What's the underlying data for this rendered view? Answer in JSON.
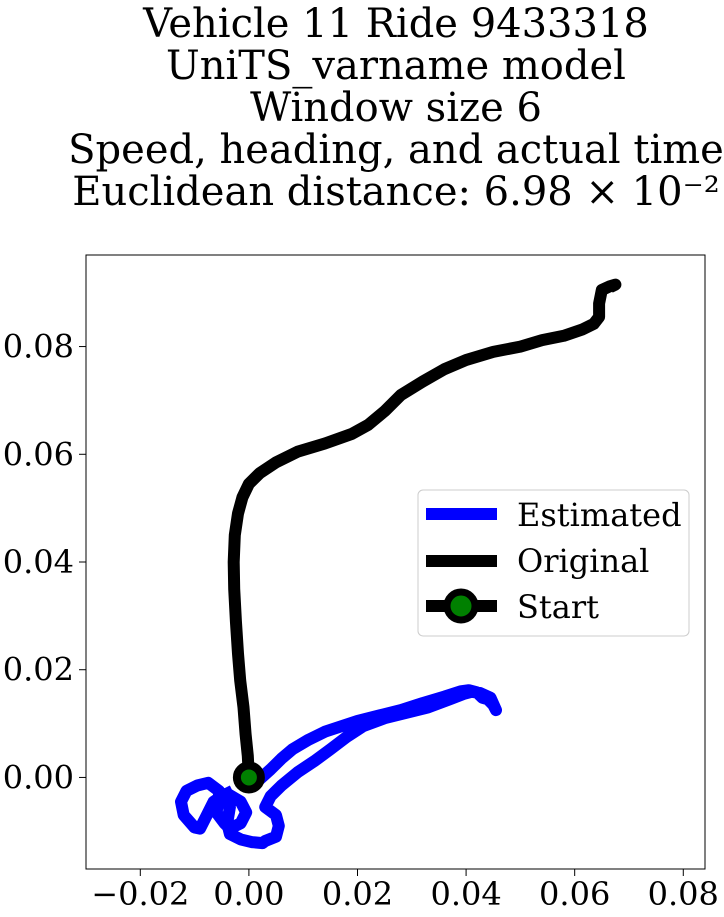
{
  "chart_data": {
    "type": "line",
    "title_lines": [
      "Vehicle 11 Ride 9433318",
      "UniTS_varname model",
      "Window size 6",
      "Speed, heading, and actual time",
      "Euclidean distance: 6.98 × 10⁻²"
    ],
    "xlabel": "",
    "ylabel": "",
    "xlim": [
      -0.03,
      0.084
    ],
    "ylim": [
      -0.017,
      0.097
    ],
    "xticks": [
      -0.02,
      0.0,
      0.02,
      0.04,
      0.06,
      0.08
    ],
    "xtick_labels": [
      "−0.02",
      "0.00",
      "0.02",
      "0.04",
      "0.06",
      "0.08"
    ],
    "yticks": [
      0.0,
      0.02,
      0.04,
      0.06,
      0.08
    ],
    "ytick_labels": [
      "0.00",
      "0.02",
      "0.04",
      "0.06",
      "0.08"
    ],
    "grid": false,
    "legend_position": "center-right",
    "series": [
      {
        "name": "Estimated",
        "color": "#0000ff",
        "x": [
          0.0,
          0.002,
          0.004,
          0.006,
          0.008,
          0.011,
          0.014,
          0.017,
          0.02,
          0.024,
          0.028,
          0.032,
          0.036,
          0.039,
          0.0405,
          0.042,
          0.043,
          0.044,
          0.045,
          0.0455,
          0.0445,
          0.0425,
          0.041,
          0.0395,
          0.037,
          0.033,
          0.029,
          0.025,
          0.021,
          0.018,
          0.015,
          0.012,
          0.009,
          0.006,
          0.004,
          0.003,
          0.005,
          0.0055,
          0.005,
          0.003,
          0.0025,
          0.0005,
          -0.0015,
          -0.0035,
          -0.004,
          -0.0035,
          -0.005,
          -0.0065,
          -0.008,
          -0.009,
          -0.01,
          -0.012,
          -0.0125,
          -0.0115,
          -0.0095,
          -0.0075,
          -0.0055,
          -0.0055,
          -0.006,
          -0.0045,
          -0.0035,
          -0.0015,
          -0.0005,
          -0.0015,
          -0.004,
          -0.0045
        ],
        "y": [
          -0.001,
          -0.0003,
          0.0015,
          0.0035,
          0.0052,
          0.007,
          0.0085,
          0.0095,
          0.0105,
          0.0115,
          0.0125,
          0.0138,
          0.015,
          0.016,
          0.0162,
          0.0158,
          0.0148,
          0.0145,
          0.0135,
          0.0125,
          0.0148,
          0.0157,
          0.0159,
          0.0155,
          0.0145,
          0.013,
          0.012,
          0.011,
          0.0095,
          0.0075,
          0.0052,
          0.003,
          0.001,
          -0.0015,
          -0.0035,
          -0.0055,
          -0.007,
          -0.009,
          -0.011,
          -0.0118,
          -0.0122,
          -0.012,
          -0.0115,
          -0.0105,
          -0.0085,
          -0.0055,
          -0.0035,
          -0.0045,
          -0.0075,
          -0.0095,
          -0.0093,
          -0.007,
          -0.0045,
          -0.0025,
          -0.0015,
          -0.001,
          -0.0025,
          -0.0045,
          -0.0065,
          -0.0085,
          -0.0095,
          -0.0085,
          -0.0065,
          -0.0045,
          -0.003,
          -0.002
        ]
      },
      {
        "name": "Original",
        "color": "#000000",
        "x": [
          0.0,
          -0.0002,
          -0.0006,
          -0.001,
          -0.0016,
          -0.002,
          -0.0024,
          -0.0027,
          -0.0028,
          -0.0026,
          -0.002,
          -0.0012,
          0.0,
          0.002,
          0.005,
          0.009,
          0.014,
          0.019,
          0.022,
          0.025,
          0.028,
          0.032,
          0.036,
          0.04,
          0.045,
          0.05,
          0.054,
          0.058,
          0.0615,
          0.0635,
          0.0645,
          0.0645,
          0.065,
          0.0665,
          0.0675,
          0.0665
        ],
        "y": [
          0.0,
          0.004,
          0.008,
          0.013,
          0.018,
          0.023,
          0.029,
          0.035,
          0.04,
          0.045,
          0.049,
          0.052,
          0.0545,
          0.0565,
          0.0585,
          0.0605,
          0.062,
          0.0638,
          0.0655,
          0.068,
          0.071,
          0.0735,
          0.0758,
          0.0775,
          0.079,
          0.08,
          0.0812,
          0.082,
          0.0832,
          0.0842,
          0.0855,
          0.088,
          0.0905,
          0.0912,
          0.0915,
          0.091
        ]
      }
    ],
    "start_point": {
      "name": "Start",
      "x": 0.0,
      "y": 0.0,
      "edge_color": "#000000",
      "face_color": "#008000"
    }
  }
}
